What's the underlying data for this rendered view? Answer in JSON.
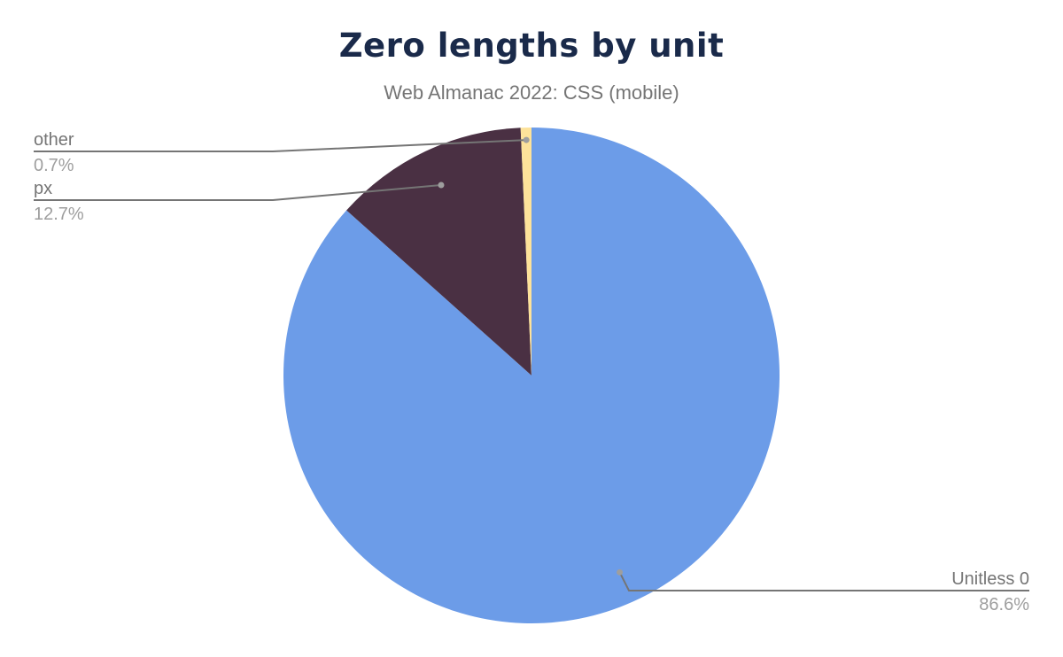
{
  "chart_data": {
    "type": "pie",
    "title": "Zero lengths by unit",
    "subtitle": "Web Almanac 2022: CSS (mobile)",
    "slices": [
      {
        "label": "Unitless 0",
        "value": 86.6,
        "display": "86.6%",
        "color": "#6c9ce8"
      },
      {
        "label": "px",
        "value": 12.7,
        "display": "12.7%",
        "color": "#4a3043"
      },
      {
        "label": "other",
        "value": 0.7,
        "display": "0.7%",
        "color": "#fde29a"
      }
    ],
    "start_angle": "12 o'clock",
    "direction": "clockwise",
    "legend": "none (callout labels)"
  }
}
